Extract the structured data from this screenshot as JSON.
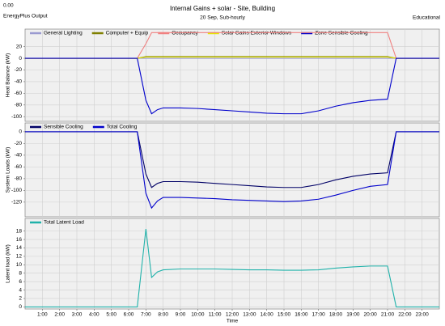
{
  "header": {
    "corner": "0.00",
    "source": "EnergyPlus Output",
    "title": "Internal Gains + solar - Site, Building",
    "subtitle": "20 Sep, Sub-hourly",
    "right": "Educational"
  },
  "chart_data": [
    {
      "type": "line",
      "y_label": "Heat Balance (kW)",
      "grid": true,
      "legend": "top-left",
      "x": [
        0,
        6.5,
        7,
        7.33,
        7.67,
        8,
        9,
        10,
        11,
        12,
        13,
        14,
        15,
        16,
        17,
        18,
        19,
        20,
        21,
        21.5,
        24
      ],
      "xlim": [
        0,
        24
      ],
      "ylim": [
        -108,
        50
      ],
      "yticks": [
        20,
        0,
        -20,
        -40,
        -60,
        -80,
        -100
      ],
      "series": [
        {
          "name": "General Lighting",
          "color": "#9a9ad0",
          "values": [
            0,
            0,
            0,
            0,
            0,
            0,
            0,
            0,
            0,
            0,
            0,
            0,
            0,
            0,
            0,
            0,
            0,
            0,
            0,
            0,
            0
          ]
        },
        {
          "name": "Computer + Equip",
          "color": "#808000",
          "values": [
            0,
            0,
            3,
            3,
            3,
            3,
            3,
            3,
            3,
            3,
            3,
            3,
            3,
            3,
            3,
            3,
            3,
            3,
            3,
            0,
            0
          ]
        },
        {
          "name": "Occupancy",
          "color": "#f08080",
          "values": [
            0,
            0,
            25,
            44,
            44,
            44,
            44,
            44,
            44,
            44,
            44,
            44,
            44,
            44,
            44,
            44,
            44,
            44,
            44,
            0,
            0
          ]
        },
        {
          "name": "Solar Gains Exterior Windows",
          "color": "#e6e600",
          "values": [
            0,
            0,
            2,
            2,
            2,
            2,
            2,
            2,
            2,
            2,
            2,
            2,
            2,
            2,
            2,
            2,
            2,
            2,
            2,
            0,
            0
          ]
        },
        {
          "name": "Zone Sensible Cooling",
          "color": "#0000cc",
          "values": [
            0,
            0,
            -72,
            -95,
            -88,
            -85,
            -85,
            -86,
            -88,
            -90,
            -92,
            -94,
            -95,
            -95,
            -90,
            -82,
            -76,
            -72,
            -70,
            0,
            0
          ]
        }
      ]
    },
    {
      "type": "line",
      "y_label": "System Loads (kW)",
      "grid": true,
      "legend": "top-left",
      "x": [
        0,
        6.5,
        7,
        7.33,
        7.67,
        8,
        9,
        10,
        11,
        12,
        13,
        14,
        15,
        16,
        17,
        18,
        19,
        20,
        21,
        21.5,
        24
      ],
      "xlim": [
        0,
        24
      ],
      "ylim": [
        -145,
        15
      ],
      "yticks": [
        0,
        -20,
        -40,
        -60,
        -80,
        -100,
        -120
      ],
      "series": [
        {
          "name": "Sensible Cooling",
          "color": "#000066",
          "values": [
            0,
            0,
            -72,
            -95,
            -88,
            -85,
            -85,
            -86,
            -88,
            -90,
            -92,
            -94,
            -95,
            -95,
            -90,
            -82,
            -76,
            -72,
            -70,
            0,
            0
          ]
        },
        {
          "name": "Total Cooling",
          "color": "#0000cc",
          "values": [
            0,
            0,
            -105,
            -130,
            -118,
            -112,
            -112,
            -113,
            -114,
            -116,
            -117,
            -118,
            -119,
            -118,
            -115,
            -108,
            -100,
            -93,
            -90,
            0,
            0
          ]
        }
      ]
    },
    {
      "type": "line",
      "y_label": "Latent load (kW)",
      "x_label": "Time",
      "grid": true,
      "legend": "top-left",
      "x": [
        0,
        6.5,
        7,
        7.33,
        7.67,
        8,
        9,
        10,
        11,
        12,
        13,
        14,
        15,
        16,
        17,
        18,
        19,
        20,
        21,
        21.5,
        24
      ],
      "xlim": [
        0,
        24
      ],
      "ylim": [
        -0.5,
        21
      ],
      "yticks": [
        0,
        2,
        4,
        6,
        8,
        10,
        12,
        14,
        16,
        18
      ],
      "xticks": [
        {
          "value": 1,
          "label": "1:00"
        },
        {
          "value": 2,
          "label": "2:00"
        },
        {
          "value": 3,
          "label": "3:00"
        },
        {
          "value": 4,
          "label": "4:00"
        },
        {
          "value": 5,
          "label": "5:00"
        },
        {
          "value": 6,
          "label": "6:00"
        },
        {
          "value": 7,
          "label": "7:00"
        },
        {
          "value": 8,
          "label": "8:00"
        },
        {
          "value": 9,
          "label": "9:00"
        },
        {
          "value": 10,
          "label": "10:00"
        },
        {
          "value": 11,
          "label": "11:00"
        },
        {
          "value": 12,
          "label": "12:00"
        },
        {
          "value": 13,
          "label": "13:00"
        },
        {
          "value": 14,
          "label": "14:00"
        },
        {
          "value": 15,
          "label": "15:00"
        },
        {
          "value": 16,
          "label": "16:00"
        },
        {
          "value": 17,
          "label": "17:00"
        },
        {
          "value": 18,
          "label": "18:00"
        },
        {
          "value": 19,
          "label": "19:00"
        },
        {
          "value": 20,
          "label": "20:00"
        },
        {
          "value": 21,
          "label": "21:00"
        },
        {
          "value": 22,
          "label": "22:00"
        },
        {
          "value": 23,
          "label": "23:00"
        }
      ],
      "series": [
        {
          "name": "Total Latent Load",
          "color": "#20b2aa",
          "values": [
            0,
            0,
            18.5,
            7,
            8.3,
            8.8,
            9,
            9,
            9,
            8.9,
            8.8,
            8.8,
            8.7,
            8.7,
            8.8,
            9.2,
            9.5,
            9.7,
            9.7,
            0,
            0
          ]
        }
      ]
    }
  ]
}
